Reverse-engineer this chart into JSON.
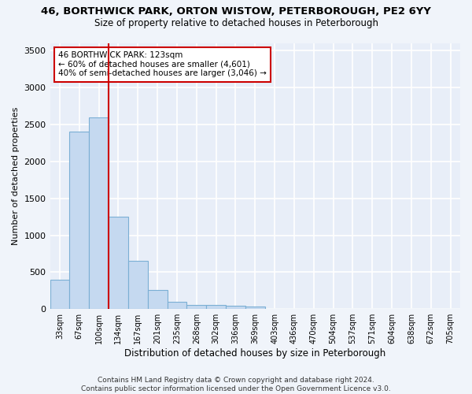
{
  "title1": "46, BORTHWICK PARK, ORTON WISTOW, PETERBOROUGH, PE2 6YY",
  "title2": "Size of property relative to detached houses in Peterborough",
  "xlabel": "Distribution of detached houses by size in Peterborough",
  "ylabel": "Number of detached properties",
  "bin_labels": [
    "33sqm",
    "67sqm",
    "100sqm",
    "134sqm",
    "167sqm",
    "201sqm",
    "235sqm",
    "268sqm",
    "302sqm",
    "336sqm",
    "369sqm",
    "403sqm",
    "436sqm",
    "470sqm",
    "504sqm",
    "537sqm",
    "571sqm",
    "604sqm",
    "638sqm",
    "672sqm",
    "705sqm"
  ],
  "bar_values": [
    400,
    2400,
    2600,
    1250,
    650,
    260,
    100,
    60,
    55,
    45,
    30,
    0,
    0,
    0,
    0,
    0,
    0,
    0,
    0,
    0,
    0
  ],
  "bar_color": "#c5d9f0",
  "bar_edge_color": "#7bafd4",
  "red_line_x": 2.5,
  "red_line_color": "#cc0000",
  "annotation_text": "46 BORTHWICK PARK: 123sqm\n← 60% of detached houses are smaller (4,601)\n40% of semi-detached houses are larger (3,046) →",
  "annotation_box_color": "#cc0000",
  "ylim": [
    0,
    3600
  ],
  "yticks": [
    0,
    500,
    1000,
    1500,
    2000,
    2500,
    3000,
    3500
  ],
  "footer": "Contains HM Land Registry data © Crown copyright and database right 2024.\nContains public sector information licensed under the Open Government Licence v3.0.",
  "bg_color": "#f0f4fa",
  "plot_bg_color": "#e8eef8",
  "grid_color": "#d0d8e8"
}
